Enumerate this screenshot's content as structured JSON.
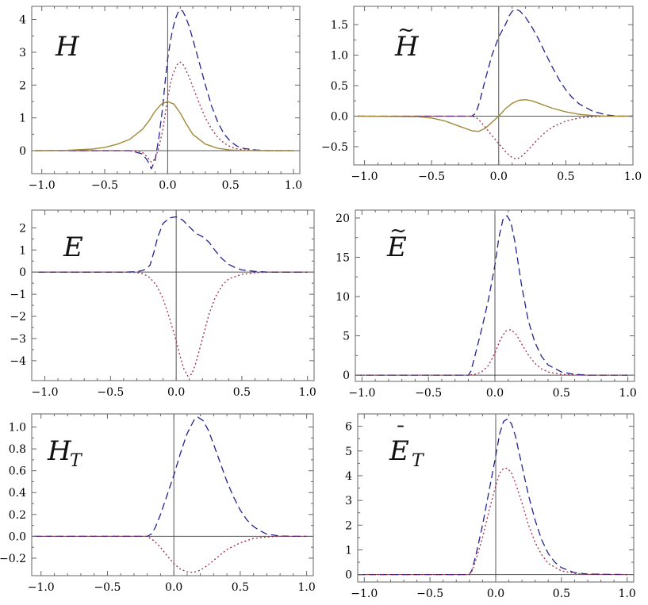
{
  "colors": {
    "dashed": "#23238c",
    "dotted": "#a02848",
    "solid": "#a08a3a",
    "axis": "#555555",
    "frame": "#666666"
  },
  "chart_data": [
    {
      "type": "line",
      "label": "H",
      "label_sub": "",
      "label_mark": "",
      "xlim": [
        -1.08,
        1.05
      ],
      "ylim": [
        -0.7,
        4.4
      ],
      "xticks": [
        -1.0,
        -0.5,
        0.0,
        0.5,
        1.0
      ],
      "xtick_labels": [
        "−1.0",
        "−0.5",
        "0.0",
        "0.5",
        "1.0"
      ],
      "yticks": [
        0,
        1,
        2,
        3,
        4
      ],
      "ytick_labels": [
        "0",
        "1",
        "2",
        "3",
        "4"
      ],
      "series": [
        {
          "style": "dashed",
          "x": [
            -1.05,
            -0.5,
            -0.3,
            -0.2,
            -0.16,
            -0.13,
            -0.1,
            -0.07,
            -0.04,
            -0.02,
            0.0,
            0.02,
            0.04,
            0.06,
            0.08,
            0.1,
            0.12,
            0.14,
            0.17,
            0.2,
            0.25,
            0.3,
            0.35,
            0.4,
            0.45,
            0.5,
            0.55,
            0.6,
            0.7,
            0.8,
            1.0
          ],
          "y": [
            0,
            0,
            0,
            -0.1,
            -0.3,
            -0.55,
            -0.3,
            0.4,
            1.3,
            2.1,
            2.8,
            3.3,
            3.7,
            4.0,
            4.2,
            4.3,
            4.25,
            4.1,
            3.8,
            3.4,
            2.7,
            2.0,
            1.35,
            0.85,
            0.5,
            0.28,
            0.14,
            0.07,
            0.02,
            0,
            0
          ]
        },
        {
          "style": "dotted",
          "x": [
            -1.05,
            -0.5,
            -0.3,
            -0.2,
            -0.16,
            -0.13,
            -0.1,
            -0.07,
            -0.04,
            -0.02,
            0.0,
            0.02,
            0.04,
            0.06,
            0.08,
            0.1,
            0.12,
            0.14,
            0.17,
            0.2,
            0.25,
            0.3,
            0.35,
            0.4,
            0.45,
            0.5,
            0.55,
            0.6,
            0.7,
            0.8,
            1.0
          ],
          "y": [
            0,
            0,
            0,
            -0.05,
            -0.2,
            -0.35,
            -0.25,
            0.1,
            0.6,
            1.1,
            1.6,
            2.0,
            2.3,
            2.5,
            2.65,
            2.7,
            2.65,
            2.5,
            2.25,
            1.95,
            1.45,
            1.0,
            0.65,
            0.4,
            0.22,
            0.12,
            0.06,
            0.03,
            0.01,
            0,
            0
          ]
        },
        {
          "style": "solid",
          "x": [
            -1.05,
            -0.8,
            -0.6,
            -0.5,
            -0.4,
            -0.3,
            -0.2,
            -0.15,
            -0.1,
            -0.05,
            0.0,
            0.05,
            0.1,
            0.15,
            0.2,
            0.3,
            0.4,
            0.5,
            0.6,
            0.8,
            1.0
          ],
          "y": [
            0,
            0.01,
            0.05,
            0.1,
            0.2,
            0.35,
            0.65,
            0.9,
            1.2,
            1.42,
            1.5,
            1.42,
            1.15,
            0.8,
            0.5,
            0.2,
            0.07,
            0.02,
            0.005,
            0,
            0
          ]
        }
      ]
    },
    {
      "type": "line",
      "label": "H",
      "label_sub": "",
      "label_mark": "~",
      "xlim": [
        -1.08,
        1.0
      ],
      "ylim": [
        -0.8,
        1.8
      ],
      "xticks": [
        -1.0,
        -0.5,
        0.0,
        0.5,
        1.0
      ],
      "xtick_labels": [
        "−1.0",
        "−0.5",
        "0.0",
        "0.5",
        "1.0"
      ],
      "yticks": [
        -0.5,
        0.0,
        0.5,
        1.0,
        1.5
      ],
      "ytick_labels": [
        "−0.5",
        "0.0",
        "0.5",
        "1.0",
        "1.5"
      ],
      "series": [
        {
          "style": "dashed",
          "x": [
            -1.05,
            -0.4,
            -0.2,
            -0.17,
            -0.14,
            -0.1,
            -0.05,
            0.0,
            0.05,
            0.08,
            0.1,
            0.13,
            0.16,
            0.2,
            0.25,
            0.3,
            0.35,
            0.4,
            0.45,
            0.5,
            0.55,
            0.6,
            0.7,
            0.8,
            0.9,
            1.0
          ],
          "y": [
            0,
            0,
            0,
            0.05,
            0.25,
            0.6,
            1.0,
            1.3,
            1.5,
            1.65,
            1.72,
            1.75,
            1.72,
            1.62,
            1.45,
            1.25,
            1.02,
            0.8,
            0.6,
            0.43,
            0.3,
            0.2,
            0.08,
            0.02,
            0,
            0
          ]
        },
        {
          "style": "dotted",
          "x": [
            -1.05,
            -0.4,
            -0.2,
            -0.17,
            -0.14,
            -0.1,
            -0.05,
            0.0,
            0.05,
            0.1,
            0.13,
            0.16,
            0.2,
            0.25,
            0.3,
            0.35,
            0.4,
            0.5,
            0.6,
            0.7,
            0.8,
            0.9,
            1.0
          ],
          "y": [
            0,
            0,
            0,
            -0.02,
            -0.08,
            -0.18,
            -0.32,
            -0.45,
            -0.58,
            -0.68,
            -0.7,
            -0.68,
            -0.6,
            -0.48,
            -0.36,
            -0.26,
            -0.18,
            -0.08,
            -0.03,
            -0.01,
            0,
            0,
            0
          ]
        },
        {
          "style": "solid",
          "x": [
            -1.05,
            -0.6,
            -0.5,
            -0.4,
            -0.3,
            -0.2,
            -0.15,
            -0.1,
            -0.05,
            0.0,
            0.05,
            0.1,
            0.15,
            0.2,
            0.25,
            0.3,
            0.4,
            0.5,
            0.6,
            0.7,
            0.8,
            0.9,
            1.0
          ],
          "y": [
            0,
            -0.01,
            -0.03,
            -0.08,
            -0.16,
            -0.24,
            -0.25,
            -0.2,
            -0.1,
            0.0,
            0.12,
            0.21,
            0.26,
            0.27,
            0.25,
            0.21,
            0.13,
            0.07,
            0.03,
            0.01,
            0,
            0,
            0
          ]
        }
      ]
    },
    {
      "type": "line",
      "label": "E",
      "label_sub": "",
      "label_mark": "",
      "xlim": [
        -1.1,
        1.05
      ],
      "ylim": [
        -4.9,
        2.8
      ],
      "xticks": [
        -1.0,
        -0.5,
        0.0,
        0.5,
        1.0
      ],
      "xtick_labels": [
        "−1.0",
        "−0.5",
        "0.0",
        "0.5",
        "1.0"
      ],
      "yticks": [
        -4,
        -3,
        -2,
        -1,
        0,
        1,
        2
      ],
      "ytick_labels": [
        "−4",
        "−3",
        "−2",
        "−1",
        "0",
        "1",
        "2"
      ],
      "series": [
        {
          "style": "dashed",
          "x": [
            -1.05,
            -0.4,
            -0.3,
            -0.25,
            -0.2,
            -0.17,
            -0.14,
            -0.1,
            -0.05,
            0.0,
            0.05,
            0.1,
            0.15,
            0.2,
            0.25,
            0.3,
            0.35,
            0.4,
            0.45,
            0.5,
            0.6,
            0.7,
            1.0
          ],
          "y": [
            0,
            0,
            0.02,
            0.08,
            0.3,
            0.9,
            1.6,
            2.2,
            2.45,
            2.5,
            2.35,
            2.05,
            1.75,
            1.6,
            1.35,
            0.95,
            0.6,
            0.35,
            0.2,
            0.1,
            0.03,
            0,
            0
          ]
        },
        {
          "style": "dotted",
          "x": [
            -1.05,
            -0.4,
            -0.3,
            -0.25,
            -0.2,
            -0.15,
            -0.1,
            -0.05,
            0.0,
            0.03,
            0.06,
            0.09,
            0.12,
            0.15,
            0.2,
            0.25,
            0.3,
            0.35,
            0.4,
            0.5,
            0.6,
            0.7,
            1.0
          ],
          "y": [
            0,
            0,
            -0.02,
            -0.08,
            -0.25,
            -0.6,
            -1.2,
            -2.1,
            -3.1,
            -3.8,
            -4.4,
            -4.7,
            -4.6,
            -4.1,
            -3.0,
            -1.9,
            -1.1,
            -0.6,
            -0.3,
            -0.1,
            -0.03,
            0,
            0
          ]
        }
      ]
    },
    {
      "type": "line",
      "label": "E",
      "label_sub": "",
      "label_mark": "~",
      "xlim": [
        -1.05,
        1.05
      ],
      "ylim": [
        -0.8,
        21.0
      ],
      "xticks": [
        -1.0,
        -0.5,
        0.0,
        0.5,
        1.0
      ],
      "xtick_labels": [
        "−1.0",
        "−0.5",
        "0.0",
        "0.5",
        "1.0"
      ],
      "yticks": [
        0,
        5,
        10,
        15,
        20
      ],
      "ytick_labels": [
        "0",
        "5",
        "10",
        "15",
        "20"
      ],
      "series": [
        {
          "style": "dashed",
          "x": [
            -1.05,
            -0.2,
            -0.18,
            -0.15,
            -0.1,
            -0.05,
            0.0,
            0.03,
            0.06,
            0.09,
            0.12,
            0.15,
            0.2,
            0.25,
            0.3,
            0.35,
            0.4,
            0.5,
            0.6,
            0.7,
            1.0
          ],
          "y": [
            0,
            0,
            0.5,
            2.5,
            5.8,
            9.5,
            14.0,
            17.5,
            19.8,
            20.3,
            19.5,
            17.0,
            11.5,
            7.0,
            4.2,
            2.4,
            1.3,
            0.4,
            0.1,
            0,
            0
          ]
        },
        {
          "style": "dotted",
          "x": [
            -1.05,
            -0.2,
            -0.15,
            -0.1,
            -0.05,
            0.0,
            0.04,
            0.08,
            0.12,
            0.16,
            0.2,
            0.25,
            0.3,
            0.35,
            0.4,
            0.5,
            0.6,
            0.7,
            1.0
          ],
          "y": [
            0,
            0,
            0.1,
            0.4,
            1.2,
            2.8,
            4.5,
            5.6,
            5.8,
            5.2,
            4.0,
            2.6,
            1.5,
            0.8,
            0.4,
            0.1,
            0.03,
            0,
            0
          ]
        }
      ]
    },
    {
      "type": "line",
      "label": "H",
      "label_sub": "T",
      "label_mark": "",
      "xlim": [
        -1.07,
        1.05
      ],
      "ylim": [
        -0.36,
        1.12
      ],
      "xticks": [
        -1.0,
        -0.5,
        0.0,
        0.5,
        1.0
      ],
      "xtick_labels": [
        "−1.0",
        "−0.5",
        "0.0",
        "0.5",
        "1.0"
      ],
      "yticks": [
        -0.2,
        0.0,
        0.2,
        0.4,
        0.6,
        0.8,
        1.0
      ],
      "ytick_labels": [
        "−0.2",
        "0.0",
        "0.2",
        "0.4",
        "0.6",
        "0.8",
        "1.0"
      ],
      "series": [
        {
          "style": "dashed",
          "x": [
            -1.05,
            -0.3,
            -0.2,
            -0.17,
            -0.14,
            -0.1,
            -0.05,
            0.0,
            0.05,
            0.1,
            0.15,
            0.18,
            0.22,
            0.26,
            0.3,
            0.35,
            0.4,
            0.45,
            0.5,
            0.55,
            0.6,
            0.65,
            0.7,
            0.8,
            0.9,
            1.0
          ],
          "y": [
            0,
            0,
            0,
            0.02,
            0.08,
            0.2,
            0.38,
            0.56,
            0.76,
            0.94,
            1.06,
            1.09,
            1.06,
            0.97,
            0.84,
            0.67,
            0.5,
            0.36,
            0.24,
            0.15,
            0.09,
            0.05,
            0.02,
            0.003,
            0,
            0
          ]
        },
        {
          "style": "dotted",
          "x": [
            -1.05,
            -0.3,
            -0.2,
            -0.15,
            -0.1,
            -0.05,
            0.0,
            0.05,
            0.1,
            0.15,
            0.2,
            0.25,
            0.3,
            0.35,
            0.4,
            0.5,
            0.6,
            0.7,
            0.8,
            1.0
          ],
          "y": [
            0,
            0,
            0,
            -0.04,
            -0.1,
            -0.18,
            -0.25,
            -0.3,
            -0.325,
            -0.33,
            -0.31,
            -0.27,
            -0.22,
            -0.17,
            -0.12,
            -0.06,
            -0.02,
            -0.005,
            0,
            0
          ]
        }
      ]
    },
    {
      "type": "line",
      "label": "E",
      "label_sub": "T",
      "label_mark": "¯",
      "xlim": [
        -1.05,
        1.05
      ],
      "ylim": [
        -0.3,
        6.5
      ],
      "xticks": [
        -1.0,
        -0.5,
        0.0,
        0.5,
        1.0
      ],
      "xtick_labels": [
        "−1.0",
        "−0.5",
        "0.0",
        "0.5",
        "1.0"
      ],
      "yticks": [
        0,
        1,
        2,
        3,
        4,
        5,
        6
      ],
      "ytick_labels": [
        "0",
        "1",
        "2",
        "3",
        "4",
        "5",
        "6"
      ],
      "series": [
        {
          "style": "dashed",
          "x": [
            -1.05,
            -0.2,
            -0.18,
            -0.15,
            -0.1,
            -0.05,
            0.0,
            0.03,
            0.06,
            0.09,
            0.12,
            0.15,
            0.2,
            0.25,
            0.3,
            0.35,
            0.4,
            0.45,
            0.5,
            0.6,
            0.7,
            1.0
          ],
          "y": [
            0,
            0,
            0.2,
            0.8,
            2.0,
            3.4,
            4.8,
            5.7,
            6.2,
            6.3,
            6.1,
            5.6,
            4.4,
            3.2,
            2.2,
            1.4,
            0.85,
            0.5,
            0.28,
            0.08,
            0.02,
            0
          ]
        },
        {
          "style": "dotted",
          "x": [
            -1.05,
            -0.2,
            -0.18,
            -0.15,
            -0.1,
            -0.05,
            0.0,
            0.03,
            0.06,
            0.09,
            0.12,
            0.15,
            0.2,
            0.25,
            0.3,
            0.35,
            0.4,
            0.5,
            0.6,
            0.7,
            1.0
          ],
          "y": [
            0,
            0,
            0.15,
            0.6,
            1.5,
            2.6,
            3.6,
            4.1,
            4.3,
            4.3,
            4.1,
            3.7,
            2.9,
            2.0,
            1.3,
            0.8,
            0.45,
            0.15,
            0.05,
            0.01,
            0
          ]
        }
      ]
    }
  ]
}
